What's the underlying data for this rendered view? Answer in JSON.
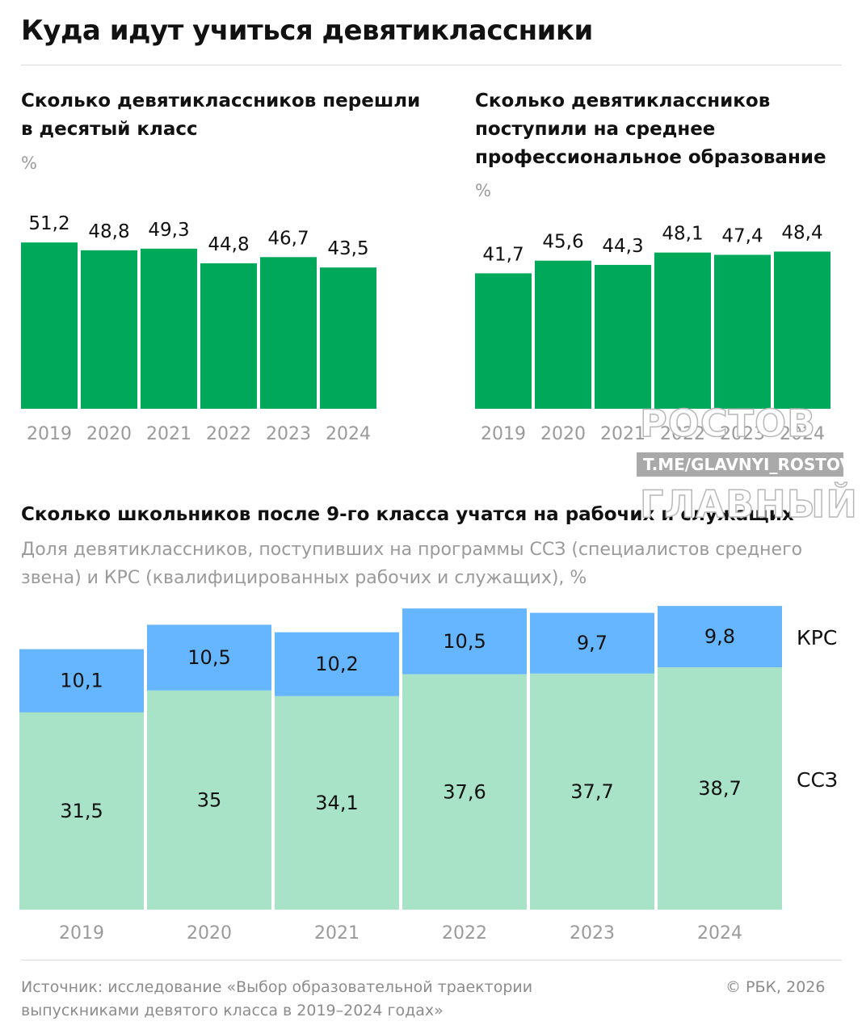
{
  "header": {
    "title": "Куда идут учиться девятиклассники"
  },
  "chart_data": [
    {
      "type": "bar",
      "title": "Сколько девятиклассников перешли в десятый класс",
      "unit": "%",
      "categories": [
        "2019",
        "2020",
        "2021",
        "2022",
        "2023",
        "2024"
      ],
      "values": [
        51.2,
        48.8,
        49.3,
        44.8,
        46.7,
        43.5
      ],
      "value_labels": [
        "51,2",
        "48,8",
        "49,3",
        "44,8",
        "46,7",
        "43,5"
      ],
      "color": "#00a859"
    },
    {
      "type": "bar",
      "title": "Сколько девятиклассников поступили на среднее профессиональное образование",
      "unit": "%",
      "categories": [
        "2019",
        "2020",
        "2021",
        "2022",
        "2023",
        "2024"
      ],
      "values": [
        41.7,
        45.6,
        44.3,
        48.1,
        47.4,
        48.4
      ],
      "value_labels": [
        "41,7",
        "45,6",
        "44,3",
        "48,1",
        "47,4",
        "48,4"
      ],
      "color": "#00a859"
    },
    {
      "type": "bar",
      "stacked": true,
      "title": "Сколько школьников после 9-го класса учатся на рабочих и служащих",
      "subtitle": "Доля девятиклассников, поступивших на программы ССЗ (специалистов среднего звена) и КРС (квалифицированных рабочих и служащих), %",
      "categories": [
        "2019",
        "2020",
        "2021",
        "2022",
        "2023",
        "2024"
      ],
      "series": [
        {
          "name": "ССЗ",
          "values": [
            31.5,
            35,
            34.1,
            37.6,
            37.7,
            38.7
          ],
          "value_labels": [
            "31,5",
            "35",
            "34,1",
            "37,6",
            "37,7",
            "38,7"
          ],
          "color": "#a8e3c8"
        },
        {
          "name": "КРС",
          "values": [
            10.1,
            10.5,
            10.2,
            10.5,
            9.7,
            9.8
          ],
          "value_labels": [
            "10,1",
            "10,5",
            "10,2",
            "10,5",
            "9,7",
            "9,8"
          ],
          "color": "#66b6ff"
        }
      ]
    }
  ],
  "watermark": {
    "line1": "РОСТОВ",
    "line2": "T.ME/GLAVNYI_ROSTOV",
    "line3": "ГЛАВНЫЙ"
  },
  "footer": {
    "source_line1": "Источник: исследование «Выбор образовательной траектории",
    "source_line2": "выпускниками девятого класса в 2019–2024 годах»",
    "copyright": "© РБК, 2026"
  }
}
